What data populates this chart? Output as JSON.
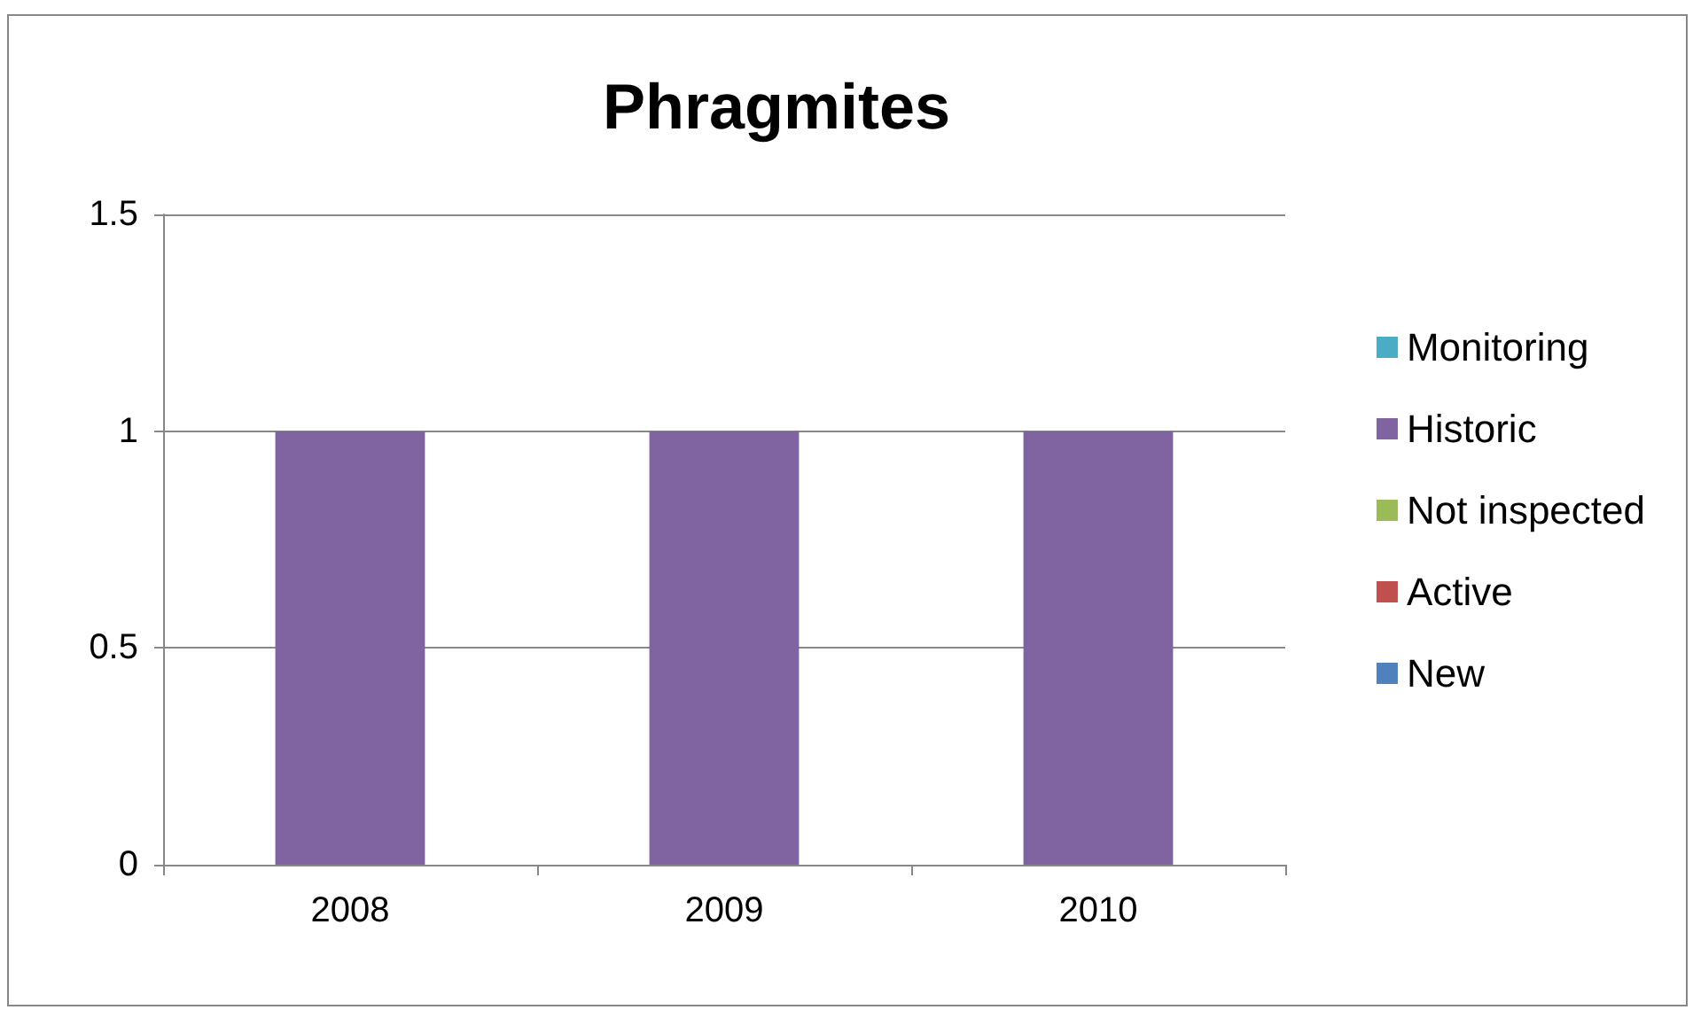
{
  "chart_data": {
    "type": "bar",
    "title": "Phragmites",
    "stacked": true,
    "categories": [
      "2008",
      "2009",
      "2010"
    ],
    "series": [
      {
        "name": "New",
        "color": "#4f81bd",
        "values": [
          0,
          0,
          0
        ]
      },
      {
        "name": "Active",
        "color": "#c0504d",
        "values": [
          0,
          0,
          0
        ]
      },
      {
        "name": "Not inspected",
        "color": "#9bbb59",
        "values": [
          0,
          0,
          0
        ]
      },
      {
        "name": "Historic",
        "color": "#8064a2",
        "values": [
          1,
          1,
          1
        ]
      },
      {
        "name": "Monitoring",
        "color": "#4bacc6",
        "values": [
          0,
          0,
          0
        ]
      }
    ],
    "ylim": [
      0,
      1.5
    ],
    "yticks": [
      0,
      0.5,
      1,
      1.5
    ],
    "grid": "y",
    "legend": "right"
  }
}
